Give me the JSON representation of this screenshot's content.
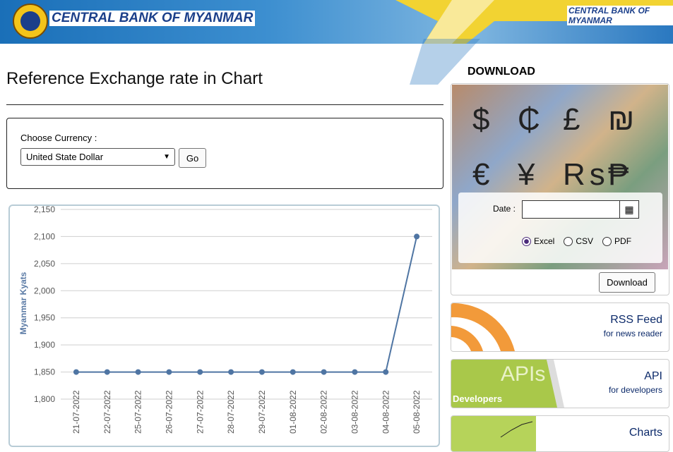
{
  "header": {
    "title": "CENTRAL BANK OF MYANMAR",
    "corner_title": "CENTRAL BANK OF MYANMAR"
  },
  "page_title": "Reference Exchange rate in Chart",
  "form": {
    "label": "Choose Currency :",
    "selected_currency": "United State Dollar",
    "button": "Go"
  },
  "chart_data": {
    "type": "line",
    "y_label": "Myanmar Kyats",
    "categories": [
      "21-07-2022",
      "22-07-2022",
      "25-07-2022",
      "26-07-2022",
      "27-07-2022",
      "28-07-2022",
      "29-07-2022",
      "01-08-2022",
      "02-08-2022",
      "03-08-2022",
      "04-08-2022",
      "05-08-2022"
    ],
    "values": [
      1850,
      1850,
      1850,
      1850,
      1850,
      1850,
      1850,
      1850,
      1850,
      1850,
      1850,
      2100
    ],
    "color": "#4f75a3",
    "ylim": [
      1800,
      2150
    ],
    "yticks": [
      {
        "value": 1800,
        "label": "1,800"
      },
      {
        "value": 1850,
        "label": "1,850"
      },
      {
        "value": 1900,
        "label": "1,900"
      },
      {
        "value": 1950,
        "label": "1,950"
      },
      {
        "value": 2000,
        "label": "2,000"
      },
      {
        "value": 2050,
        "label": "2,050"
      },
      {
        "value": 2100,
        "label": "2,100"
      },
      {
        "value": 2150,
        "label": "2,150"
      }
    ],
    "grid": true
  },
  "download": {
    "heading": "DOWNLOAD",
    "banner_symbols": [
      "$",
      "₵",
      "£",
      "₪",
      "€",
      "¥",
      "Rs",
      "₱"
    ],
    "date_label": "Date :",
    "formats": [
      "Excel",
      "CSV",
      "PDF"
    ],
    "button": "Download"
  },
  "links": [
    {
      "title": "RSS Feed",
      "subtitle": "for news reader"
    },
    {
      "title": "API",
      "subtitle": "for developers",
      "image_words": [
        "APIs",
        "Developers"
      ]
    },
    {
      "title": "Charts"
    }
  ]
}
